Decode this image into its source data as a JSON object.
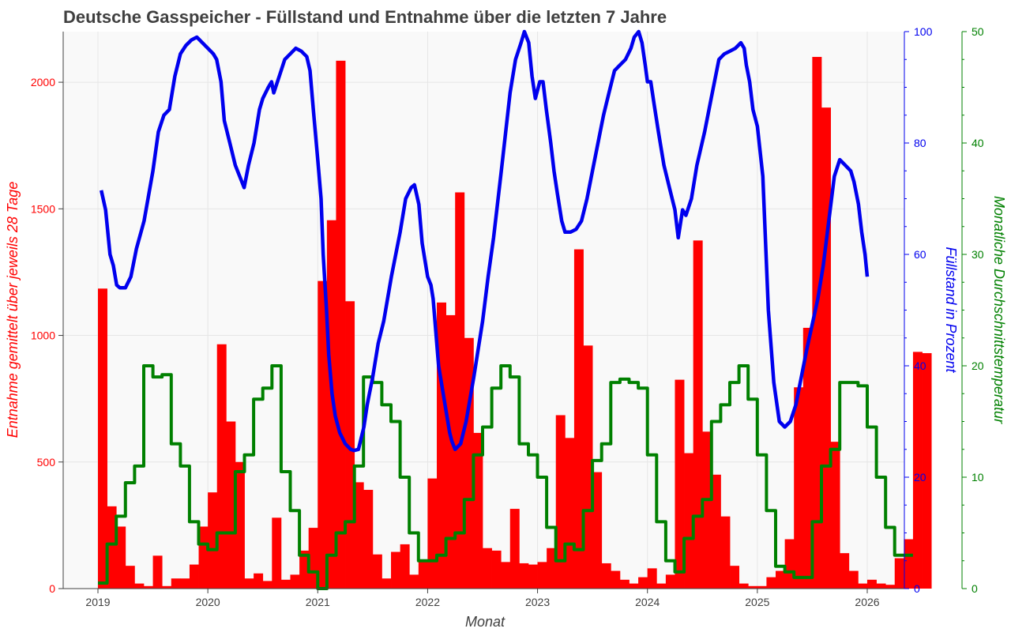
{
  "chart_data": {
    "type": "bar+line",
    "title": "Deutsche Gasspeicher - Füllstand und Entnahme über die letzten 7 Jahre",
    "xlabel": "Monat",
    "x_ticks": [
      "2019",
      "2020",
      "2021",
      "2022",
      "2023",
      "2024",
      "2025",
      "2026"
    ],
    "grid": true,
    "colors": {
      "entnahme": "#ff0000",
      "fuellstand": "#0000ee",
      "temperatur": "#008000",
      "title": "#404040",
      "plot_bg": "#f9f9f9"
    },
    "axes": {
      "left": {
        "label": "Entnahme gemittelt über jeweils 28 Tage",
        "color": "#ff0000",
        "ticks": [
          0,
          500,
          1000,
          1500,
          2000
        ],
        "ylim": [
          0,
          2200
        ]
      },
      "right1": {
        "label": "Füllstand in Prozent",
        "color": "#0000ee",
        "ticks": [
          0,
          20,
          40,
          60,
          80,
          100
        ],
        "ylim": [
          0,
          100
        ]
      },
      "right2": {
        "label": "Monatliche Durchschnittstemperatur",
        "color": "#008000",
        "ticks": [
          0,
          10,
          20,
          30,
          40,
          50
        ],
        "ylim": [
          0,
          50
        ]
      }
    },
    "series": [
      {
        "name": "Entnahme",
        "type": "bar",
        "axis": "left",
        "x_start": 2019.0,
        "bar_width_years": 0.08333,
        "values": [
          1185,
          325,
          245,
          90,
          20,
          10,
          130,
          10,
          40,
          40,
          95,
          245,
          380,
          965,
          660,
          500,
          40,
          60,
          30,
          280,
          35,
          55,
          150,
          240,
          1215,
          1455,
          2085,
          1135,
          420,
          390,
          135,
          40,
          145,
          175,
          55,
          105,
          435,
          1130,
          1080,
          1565,
          990,
          615,
          160,
          150,
          105,
          315,
          100,
          95,
          105,
          160,
          685,
          595,
          1340,
          960,
          460,
          100,
          70,
          35,
          20,
          45,
          80,
          20,
          55,
          825,
          535,
          1375,
          620,
          450,
          285,
          90,
          20,
          10,
          10,
          45,
          70,
          195,
          795,
          1030,
          2100,
          1900,
          580,
          140,
          70,
          20,
          35,
          20,
          15,
          120,
          195,
          935,
          930
        ]
      },
      {
        "name": "Füllstand",
        "type": "line",
        "axis": "right1",
        "points": [
          [
            2019.03,
            71.5
          ],
          [
            2019.07,
            68
          ],
          [
            2019.11,
            60
          ],
          [
            2019.14,
            58
          ],
          [
            2019.17,
            54.5
          ],
          [
            2019.2,
            54
          ],
          [
            2019.25,
            54
          ],
          [
            2019.3,
            56
          ],
          [
            2019.35,
            61
          ],
          [
            2019.42,
            66
          ],
          [
            2019.5,
            75
          ],
          [
            2019.55,
            82
          ],
          [
            2019.6,
            85
          ],
          [
            2019.65,
            86
          ],
          [
            2019.7,
            92
          ],
          [
            2019.75,
            96
          ],
          [
            2019.8,
            97.5
          ],
          [
            2019.85,
            98.5
          ],
          [
            2019.9,
            99
          ],
          [
            2019.95,
            98
          ],
          [
            2020.0,
            97
          ],
          [
            2020.05,
            96
          ],
          [
            2020.08,
            95
          ],
          [
            2020.12,
            91
          ],
          [
            2020.15,
            84
          ],
          [
            2020.2,
            80
          ],
          [
            2020.25,
            76
          ],
          [
            2020.3,
            73.5
          ],
          [
            2020.33,
            72
          ],
          [
            2020.37,
            76
          ],
          [
            2020.42,
            80
          ],
          [
            2020.47,
            86
          ],
          [
            2020.5,
            88
          ],
          [
            2020.55,
            90
          ],
          [
            2020.58,
            91
          ],
          [
            2020.6,
            89
          ],
          [
            2020.65,
            92
          ],
          [
            2020.7,
            95
          ],
          [
            2020.75,
            96
          ],
          [
            2020.8,
            97
          ],
          [
            2020.85,
            96.5
          ],
          [
            2020.9,
            95.5
          ],
          [
            2020.93,
            93
          ],
          [
            2020.96,
            86
          ],
          [
            2021.0,
            77
          ],
          [
            2021.03,
            70
          ],
          [
            2021.05,
            60
          ],
          [
            2021.08,
            50
          ],
          [
            2021.1,
            42
          ],
          [
            2021.13,
            35
          ],
          [
            2021.16,
            31
          ],
          [
            2021.2,
            28
          ],
          [
            2021.25,
            26
          ],
          [
            2021.3,
            25
          ],
          [
            2021.33,
            24.8
          ],
          [
            2021.37,
            25
          ],
          [
            2021.42,
            29
          ],
          [
            2021.45,
            33
          ],
          [
            2021.5,
            38
          ],
          [
            2021.55,
            44
          ],
          [
            2021.6,
            48
          ],
          [
            2021.67,
            56
          ],
          [
            2021.75,
            64
          ],
          [
            2021.8,
            70
          ],
          [
            2021.85,
            72
          ],
          [
            2021.88,
            72.5
          ],
          [
            2021.92,
            69
          ],
          [
            2021.95,
            62
          ],
          [
            2022.0,
            56
          ],
          [
            2022.03,
            54.5
          ],
          [
            2022.05,
            52
          ],
          [
            2022.1,
            40
          ],
          [
            2022.15,
            34
          ],
          [
            2022.2,
            28
          ],
          [
            2022.22,
            26.5
          ],
          [
            2022.25,
            25
          ],
          [
            2022.3,
            26
          ],
          [
            2022.35,
            30
          ],
          [
            2022.42,
            38
          ],
          [
            2022.5,
            48
          ],
          [
            2022.55,
            56
          ],
          [
            2022.6,
            63
          ],
          [
            2022.67,
            75
          ],
          [
            2022.75,
            89
          ],
          [
            2022.8,
            95
          ],
          [
            2022.85,
            98
          ],
          [
            2022.88,
            100
          ],
          [
            2022.92,
            98
          ],
          [
            2022.95,
            92
          ],
          [
            2022.98,
            88
          ],
          [
            2023.02,
            91
          ],
          [
            2023.05,
            91
          ],
          [
            2023.08,
            86
          ],
          [
            2023.12,
            80
          ],
          [
            2023.15,
            75
          ],
          [
            2023.18,
            71
          ],
          [
            2023.22,
            66
          ],
          [
            2023.25,
            64
          ],
          [
            2023.3,
            64
          ],
          [
            2023.35,
            64.5
          ],
          [
            2023.4,
            66
          ],
          [
            2023.45,
            70
          ],
          [
            2023.5,
            75
          ],
          [
            2023.55,
            80
          ],
          [
            2023.6,
            85
          ],
          [
            2023.65,
            89
          ],
          [
            2023.7,
            93
          ],
          [
            2023.75,
            94
          ],
          [
            2023.8,
            95
          ],
          [
            2023.85,
            97
          ],
          [
            2023.88,
            99
          ],
          [
            2023.92,
            100
          ],
          [
            2023.95,
            98
          ],
          [
            2023.98,
            94
          ],
          [
            2024.0,
            91
          ],
          [
            2024.03,
            91
          ],
          [
            2024.06,
            87
          ],
          [
            2024.1,
            82
          ],
          [
            2024.15,
            76
          ],
          [
            2024.2,
            72
          ],
          [
            2024.25,
            68
          ],
          [
            2024.28,
            63
          ],
          [
            2024.32,
            68
          ],
          [
            2024.35,
            67
          ],
          [
            2024.4,
            70
          ],
          [
            2024.45,
            76
          ],
          [
            2024.52,
            82
          ],
          [
            2024.58,
            88
          ],
          [
            2024.62,
            92
          ],
          [
            2024.65,
            95
          ],
          [
            2024.7,
            96
          ],
          [
            2024.75,
            96.5
          ],
          [
            2024.8,
            97
          ],
          [
            2024.85,
            98
          ],
          [
            2024.88,
            97
          ],
          [
            2024.9,
            94
          ],
          [
            2024.93,
            91
          ],
          [
            2024.96,
            86
          ],
          [
            2025.0,
            83
          ],
          [
            2025.05,
            74
          ],
          [
            2025.1,
            50
          ],
          [
            2025.15,
            37
          ],
          [
            2025.2,
            30
          ],
          [
            2025.25,
            29
          ],
          [
            2025.3,
            30
          ],
          [
            2025.35,
            33
          ],
          [
            2025.45,
            43
          ],
          [
            2025.55,
            52
          ],
          [
            2025.6,
            58
          ],
          [
            2025.65,
            66
          ],
          [
            2025.7,
            74
          ],
          [
            2025.75,
            77
          ],
          [
            2025.8,
            76
          ],
          [
            2025.85,
            75
          ],
          [
            2025.88,
            73
          ],
          [
            2025.92,
            69
          ],
          [
            2025.95,
            64
          ],
          [
            2025.98,
            60
          ],
          [
            2026.0,
            56
          ]
        ]
      },
      {
        "name": "Temperatur",
        "type": "step",
        "axis": "right2",
        "x_start": 2019.0,
        "month_years": 0.08333,
        "values": [
          0.5,
          4,
          6.5,
          9.5,
          11,
          20,
          19,
          19.2,
          13,
          11,
          6,
          4,
          3.5,
          5,
          5,
          10.5,
          12,
          17,
          18,
          20,
          10.5,
          7,
          3,
          1.5,
          0,
          3,
          5,
          6,
          11,
          19,
          18.5,
          16.5,
          15,
          10,
          5,
          2.5,
          2.5,
          3,
          4.5,
          5,
          8,
          12,
          14.5,
          18,
          20,
          19,
          13,
          12,
          10,
          5.5,
          2.5,
          4,
          3.5,
          7,
          11.5,
          13,
          18.5,
          18.8,
          18.5,
          18,
          12,
          6,
          2.5,
          1.5,
          4.5,
          6.5,
          8,
          15,
          16.5,
          18.5,
          20,
          17,
          12,
          7,
          2,
          1.5,
          1,
          1,
          6,
          11,
          12.5,
          18.5,
          18.5,
          18.2,
          14.5,
          10,
          5.5,
          3,
          3
        ]
      }
    ]
  }
}
